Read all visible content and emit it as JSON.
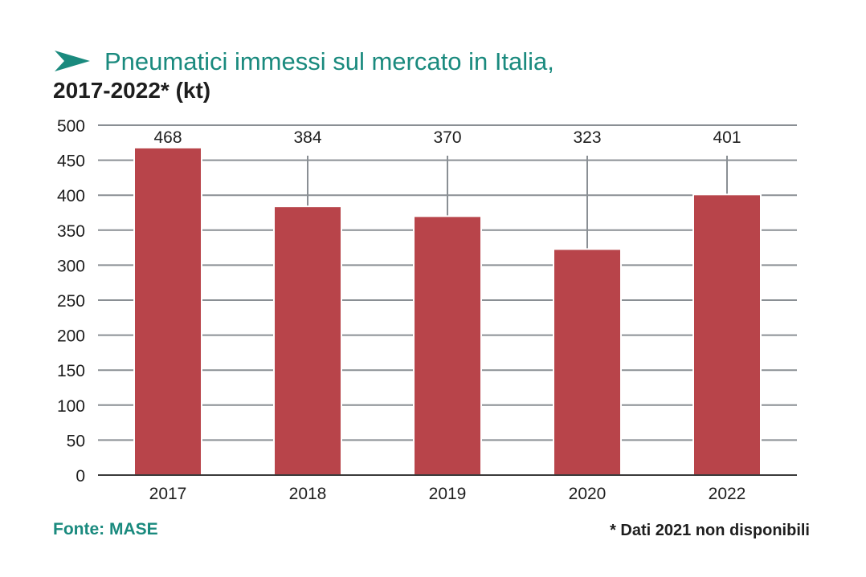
{
  "title": {
    "line1": "Pneumatici immessi sul mercato in Italia,",
    "line2": "2017-2022* (kt)"
  },
  "icon": "arrow-right-icon",
  "colors": {
    "accent": "#1a8a7e",
    "bar": "#b8444a",
    "grid": "#8a8f94",
    "text": "#1e1e1e"
  },
  "chart_data": {
    "type": "bar",
    "categories": [
      "2017",
      "2018",
      "2019",
      "2020",
      "2022"
    ],
    "values": [
      468,
      384,
      370,
      323,
      401
    ],
    "data_labels": [
      "468",
      "384",
      "370",
      "323",
      "401"
    ],
    "ylim": [
      0,
      500
    ],
    "yticks": [
      0,
      50,
      100,
      150,
      200,
      250,
      300,
      350,
      400,
      450,
      500
    ],
    "grid": true
  },
  "source": "Fonte: MASE",
  "footnote": "* Dati 2021 non disponibili"
}
